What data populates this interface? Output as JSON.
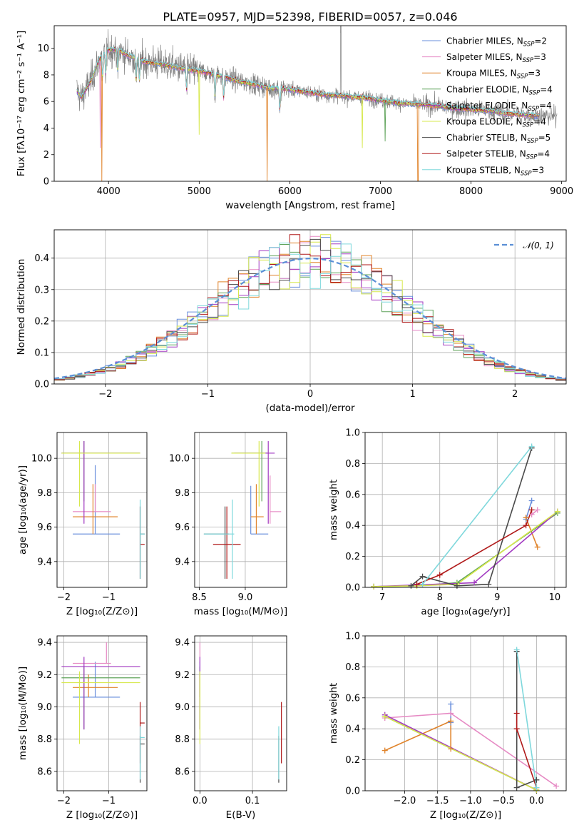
{
  "colors": {
    "chabrier_miles": "#6a8fdc",
    "salpeter_miles": "#e68ac4",
    "kroupa_miles": "#e0832a",
    "chabrier_elodie": "#5fa35a",
    "salpeter_elodie": "#a23ac2",
    "kroupa_elodie": "#d7e84c",
    "chabrier_stelib": "#4a4a4a",
    "salpeter_stelib": "#b01a1a",
    "kroupa_stelib": "#7fd8dc",
    "data": "#808080",
    "normal": "#5b8fd6",
    "grid": "#b0b0b0"
  },
  "chart_data": [
    {
      "id": "spectrum",
      "type": "line",
      "title": "PLATE=0957, MJD=52398, FIBERID=0057, z=0.046",
      "xlabel": "wavelength [Angstrom, rest frame]",
      "ylabel": "Flux [fλ10⁻¹⁷ erg cm⁻² s⁻¹ A⁻¹]",
      "xlim": [
        3400,
        9050
      ],
      "ylim": [
        0,
        11.7
      ],
      "xticks": [
        "4000",
        "5000",
        "6000",
        "7000",
        "8000",
        "9000"
      ],
      "yticks": [
        "0",
        "2",
        "4",
        "6",
        "8",
        "10"
      ],
      "grid": false,
      "legend_position": "top-right",
      "legend": [
        {
          "model": "Chabrier MILES",
          "nssp": "2"
        },
        {
          "model": "Salpeter MILES",
          "nssp": "3"
        },
        {
          "model": "Kroupa MILES",
          "nssp": "3"
        },
        {
          "model": "Chabrier ELODIE",
          "nssp": "4"
        },
        {
          "model": "Salpeter ELODIE",
          "nssp": "4"
        },
        {
          "model": "Kroupa ELODIE",
          "nssp": "4"
        },
        {
          "model": "Chabrier STELIB",
          "nssp": "5"
        },
        {
          "model": "Salpeter STELIB",
          "nssp": "4"
        },
        {
          "model": "Kroupa STELIB",
          "nssp": "3"
        }
      ],
      "continuum": {
        "x": [
          3650,
          3700,
          3800,
          3900,
          4000,
          4100,
          4200,
          4400,
          4600,
          4800,
          5000,
          5200,
          5400,
          5600,
          5800,
          6000,
          6200,
          6400,
          6600,
          6800,
          7000,
          7200,
          7400,
          7600,
          7800,
          8000,
          8200,
          8400,
          8600,
          8800
        ],
        "y": [
          6.8,
          6.3,
          7.5,
          9.2,
          9.9,
          9.9,
          9.5,
          9.0,
          8.8,
          8.5,
          8.3,
          8.0,
          7.6,
          7.3,
          7.0,
          6.9,
          6.7,
          6.5,
          6.4,
          6.3,
          6.1,
          5.9,
          5.8,
          5.7,
          5.5,
          5.4,
          5.3,
          5.1,
          5.0,
          4.9
        ]
      }
    },
    {
      "id": "residuals",
      "type": "histogram",
      "xlabel": "(data-model)/error",
      "ylabel": "Normed distribution",
      "xlim": [
        -2.5,
        2.5
      ],
      "ylim": [
        0,
        0.49
      ],
      "xticks": [
        "−2",
        "−1",
        "0",
        "1",
        "2"
      ],
      "yticks": [
        "0.0",
        "0.1",
        "0.2",
        "0.3",
        "0.4"
      ],
      "grid": true,
      "legend_position": "top-right",
      "legend_label": "𝒩(0, 1)",
      "bin_width": 0.1
    },
    {
      "id": "age_vs_Z",
      "type": "scatter",
      "xlabel": "Z [log₁₀(Z/Z⊙)]",
      "ylabel": "age  [log₁₀(age/yr)]",
      "xlim": [
        -2.15,
        -0.15
      ],
      "ylim": [
        9.25,
        10.15
      ],
      "xticks": [
        "−2",
        "−1"
      ],
      "yticks": [
        "9.4",
        "9.6",
        "9.8",
        "10.0"
      ],
      "grid": true,
      "points": [
        {
          "m": "chabrier_miles",
          "x": -1.3,
          "xe": [
            -1.8,
            -0.75
          ],
          "y": 9.56,
          "ye": [
            9.56,
            9.96
          ]
        },
        {
          "m": "salpeter_miles",
          "x": -1.3,
          "xe": [
            -1.8,
            -0.95
          ],
          "y": 9.69,
          "ye": [
            9.69,
            9.85
          ]
        },
        {
          "m": "kroupa_miles",
          "x": -1.35,
          "xe": [
            -1.8,
            -0.8
          ],
          "y": 9.66,
          "ye": [
            9.56,
            9.85
          ]
        },
        {
          "m": "chabrier_elodie",
          "x": -1.55,
          "xe": [
            -2.05,
            -0.3
          ],
          "y": 10.03,
          "ye": [
            9.75,
            10.1
          ]
        },
        {
          "m": "salpeter_elodie",
          "x": -1.55,
          "xe": [
            -2.05,
            -0.3
          ],
          "y": 10.03,
          "ye": [
            9.62,
            10.1
          ]
        },
        {
          "m": "kroupa_elodie",
          "x": -1.65,
          "xe": [
            -2.05,
            -0.3
          ],
          "y": 10.03,
          "ye": [
            9.72,
            10.1
          ]
        },
        {
          "m": "chabrier_stelib",
          "x": -0.3,
          "xe": [
            -0.3,
            -0.2
          ],
          "y": 9.56,
          "ye": [
            9.3,
            9.72
          ]
        },
        {
          "m": "salpeter_stelib",
          "x": -0.3,
          "xe": [
            -0.3,
            -0.2
          ],
          "y": 9.5,
          "ye": [
            9.3,
            9.72
          ]
        },
        {
          "m": "kroupa_stelib",
          "x": -0.3,
          "xe": [
            -0.3,
            -0.2
          ],
          "y": 9.56,
          "ye": [
            9.3,
            9.76
          ]
        }
      ]
    },
    {
      "id": "age_vs_mass",
      "type": "scatter",
      "xlabel": "mass [log₁₀(M/M⊙)]",
      "ylabel": "",
      "xlim": [
        8.45,
        9.45
      ],
      "ylim": [
        9.25,
        10.15
      ],
      "xticks": [
        "8.5",
        "9.0"
      ],
      "yticks": [
        "9.4",
        "9.6",
        "9.8",
        "10.0"
      ],
      "grid": true,
      "points": [
        {
          "m": "chabrier_miles",
          "x": 9.06,
          "xe": [
            9.06,
            9.25
          ],
          "y": 9.56,
          "ye": [
            9.56,
            9.84
          ]
        },
        {
          "m": "salpeter_miles",
          "x": 9.27,
          "xe": [
            9.27,
            9.39
          ],
          "y": 9.69,
          "ye": [
            9.62,
            9.9
          ]
        },
        {
          "m": "kroupa_miles",
          "x": 9.12,
          "xe": [
            9.06,
            9.2
          ],
          "y": 9.66,
          "ye": [
            9.56,
            9.85
          ]
        },
        {
          "m": "chabrier_elodie",
          "x": 9.18,
          "xe": [
            8.85,
            9.25
          ],
          "y": 10.03,
          "ye": [
            9.75,
            10.1
          ]
        },
        {
          "m": "salpeter_elodie",
          "x": 9.25,
          "xe": [
            8.88,
            9.32
          ],
          "y": 10.03,
          "ye": [
            9.62,
            10.1
          ]
        },
        {
          "m": "kroupa_elodie",
          "x": 9.15,
          "xe": [
            8.85,
            9.22
          ],
          "y": 10.03,
          "ye": [
            9.72,
            10.1
          ]
        },
        {
          "m": "chabrier_stelib",
          "x": 8.78,
          "xe": [
            8.55,
            8.82
          ],
          "y": 9.56,
          "ye": [
            9.3,
            9.72
          ]
        },
        {
          "m": "salpeter_stelib",
          "x": 8.8,
          "xe": [
            8.65,
            8.95
          ],
          "y": 9.5,
          "ye": [
            9.3,
            9.72
          ]
        },
        {
          "m": "kroupa_stelib",
          "x": 8.86,
          "xe": [
            8.55,
            8.88
          ],
          "y": 9.56,
          "ye": [
            9.3,
            9.76
          ]
        }
      ]
    },
    {
      "id": "mw_vs_age",
      "type": "line",
      "xlabel": "age  [log₁₀(age/yr)]",
      "ylabel": "mass weight",
      "xlim": [
        6.7,
        10.2
      ],
      "ylim": [
        0,
        1
      ],
      "xticks": [
        "7",
        "8",
        "9",
        "10"
      ],
      "yticks": [
        "0.0",
        "0.2",
        "0.4",
        "0.6",
        "0.8",
        "1.0"
      ],
      "grid": true,
      "series": [
        {
          "m": "chabrier_miles",
          "x": [
            9.5,
            9.6
          ],
          "y": [
            0.44,
            0.56
          ]
        },
        {
          "m": "salpeter_miles",
          "x": [
            9.6,
            9.7
          ],
          "y": [
            0.47,
            0.5
          ]
        },
        {
          "m": "kroupa_miles",
          "x": [
            9.5,
            9.7
          ],
          "y": [
            0.45,
            0.26
          ]
        },
        {
          "m": "chabrier_elodie",
          "x": [
            6.85,
            7.6,
            8.3,
            10.05
          ],
          "y": [
            0.005,
            0.01,
            0.03,
            0.48
          ]
        },
        {
          "m": "salpeter_elodie",
          "x": [
            6.85,
            7.6,
            8.6,
            10.05
          ],
          "y": [
            0.005,
            0.015,
            0.03,
            0.49
          ]
        },
        {
          "m": "kroupa_elodie",
          "x": [
            6.85,
            7.6,
            8.3,
            10.05
          ],
          "y": [
            0.005,
            0.01,
            0.02,
            0.49
          ]
        },
        {
          "m": "chabrier_stelib",
          "x": [
            7.5,
            7.7,
            8.3,
            8.85,
            9.6
          ],
          "y": [
            0.01,
            0.07,
            0.01,
            0.02,
            0.9
          ]
        },
        {
          "m": "salpeter_stelib",
          "x": [
            7.6,
            8.0,
            9.5,
            9.6
          ],
          "y": [
            0.02,
            0.08,
            0.4,
            0.5
          ]
        },
        {
          "m": "kroupa_stelib",
          "x": [
            7.7,
            9.6
          ],
          "y": [
            0.02,
            0.91
          ]
        }
      ]
    },
    {
      "id": "mass_vs_Z",
      "type": "scatter",
      "xlabel": "Z [log₁₀(Z/Z⊙)]",
      "ylabel": "mass [log₁₀(M/M⊙)]",
      "xlim": [
        -2.15,
        -0.15
      ],
      "ylim": [
        8.48,
        9.44
      ],
      "xticks": [
        "−2",
        "−1"
      ],
      "yticks": [
        "8.6",
        "8.8",
        "9.0",
        "9.2",
        "9.4"
      ],
      "grid": true,
      "points": [
        {
          "m": "chabrier_miles",
          "x": -1.3,
          "xe": [
            -1.8,
            -0.75
          ],
          "y": 9.06,
          "ye": [
            9.06,
            9.28
          ]
        },
        {
          "m": "salpeter_miles",
          "x": -1.05,
          "xe": [
            -1.8,
            -0.95
          ],
          "y": 9.27,
          "ye": [
            9.27,
            9.4
          ]
        },
        {
          "m": "kroupa_miles",
          "x": -1.45,
          "xe": [
            -1.8,
            -0.8
          ],
          "y": 9.12,
          "ye": [
            9.06,
            9.2
          ]
        },
        {
          "m": "chabrier_elodie",
          "x": -1.55,
          "xe": [
            -2.05,
            -0.3
          ],
          "y": 9.18,
          "ye": [
            8.86,
            9.25
          ]
        },
        {
          "m": "salpeter_elodie",
          "x": -1.55,
          "xe": [
            -2.05,
            -0.3
          ],
          "y": 9.25,
          "ye": [
            8.86,
            9.31
          ]
        },
        {
          "m": "kroupa_elodie",
          "x": -1.65,
          "xe": [
            -2.05,
            -0.3
          ],
          "y": 9.15,
          "ye": [
            8.77,
            9.22
          ]
        },
        {
          "m": "chabrier_stelib",
          "x": -0.3,
          "xe": [
            -0.3,
            -0.2
          ],
          "y": 8.77,
          "ye": [
            8.53,
            8.82
          ]
        },
        {
          "m": "salpeter_stelib",
          "x": -0.3,
          "xe": [
            -0.3,
            -0.2
          ],
          "y": 8.9,
          "ye": [
            8.65,
            9.03
          ]
        },
        {
          "m": "kroupa_stelib",
          "x": -0.3,
          "xe": [
            -0.3,
            -0.2
          ],
          "y": 8.81,
          "ye": [
            8.55,
            8.88
          ]
        }
      ]
    },
    {
      "id": "mass_vs_ebv",
      "type": "scatter",
      "xlabel": "E(B-V)",
      "ylabel": "",
      "xlim": [
        -0.01,
        0.165
      ],
      "ylim": [
        8.48,
        9.44
      ],
      "xticks": [
        "0.0",
        "0.1"
      ],
      "yticks": [
        "8.6",
        "8.8",
        "9.0",
        "9.2",
        "9.4"
      ],
      "grid": true,
      "points": [
        {
          "m": "chabrier_miles",
          "x": 0.0,
          "y": 9.06,
          "ye": [
            9.06,
            9.28
          ]
        },
        {
          "m": "salpeter_miles",
          "x": 0.0,
          "y": 9.27,
          "ye": [
            9.27,
            9.4
          ]
        },
        {
          "m": "kroupa_miles",
          "x": 0.0,
          "y": 9.12,
          "ye": [
            9.06,
            9.2
          ]
        },
        {
          "m": "chabrier_elodie",
          "x": 0.0,
          "y": 9.18,
          "ye": [
            8.86,
            9.25
          ]
        },
        {
          "m": "salpeter_elodie",
          "x": 0.0,
          "y": 9.25,
          "ye": [
            8.86,
            9.31
          ]
        },
        {
          "m": "kroupa_elodie",
          "x": 0.0,
          "y": 9.15,
          "ye": [
            8.77,
            9.22
          ]
        },
        {
          "m": "chabrier_stelib",
          "x": 0.15,
          "y": 8.77,
          "ye": [
            8.53,
            8.82
          ]
        },
        {
          "m": "salpeter_stelib",
          "x": 0.155,
          "y": 8.9,
          "ye": [
            8.65,
            9.03
          ]
        },
        {
          "m": "kroupa_stelib",
          "x": 0.15,
          "y": 8.81,
          "ye": [
            8.55,
            8.88
          ]
        }
      ]
    },
    {
      "id": "mw_vs_Z",
      "type": "line",
      "xlabel": "Z [log₁₀(Z/Z⊙)]",
      "ylabel": "mass weight",
      "xlim": [
        -2.6,
        0.45
      ],
      "ylim": [
        0,
        1
      ],
      "xticks": [
        "−2.0",
        "−1.5",
        "−1.0",
        "−0.5",
        "0.0"
      ],
      "yticks": [
        "0.0",
        "0.2",
        "0.4",
        "0.6",
        "0.8",
        "1.0"
      ],
      "grid": true,
      "series": [
        {
          "m": "chabrier_miles",
          "x": [
            -1.3,
            -1.3
          ],
          "y": [
            0.44,
            0.56
          ]
        },
        {
          "m": "salpeter_miles",
          "x": [
            -2.3,
            -1.3,
            0.3
          ],
          "y": [
            0.47,
            0.5,
            0.03
          ]
        },
        {
          "m": "kroupa_miles",
          "x": [
            -2.3,
            -1.3,
            -1.3
          ],
          "y": [
            0.26,
            0.45,
            0.27
          ]
        },
        {
          "m": "chabrier_elodie",
          "x": [
            -2.3,
            0.0
          ],
          "y": [
            0.48,
            0.005
          ]
        },
        {
          "m": "salpeter_elodie",
          "x": [
            -2.3,
            0.0
          ],
          "y": [
            0.49,
            0.005
          ]
        },
        {
          "m": "kroupa_elodie",
          "x": [
            -2.3,
            0.0
          ],
          "y": [
            0.48,
            0.005
          ]
        },
        {
          "m": "chabrier_stelib",
          "x": [
            -0.3,
            -0.3,
            0.0
          ],
          "y": [
            0.9,
            0.02,
            0.07
          ]
        },
        {
          "m": "salpeter_stelib",
          "x": [
            -0.3,
            -0.3,
            0.0
          ],
          "y": [
            0.5,
            0.4,
            0.02
          ]
        },
        {
          "m": "kroupa_stelib",
          "x": [
            -0.3,
            0.0
          ],
          "y": [
            0.91,
            0.02
          ]
        }
      ]
    }
  ]
}
